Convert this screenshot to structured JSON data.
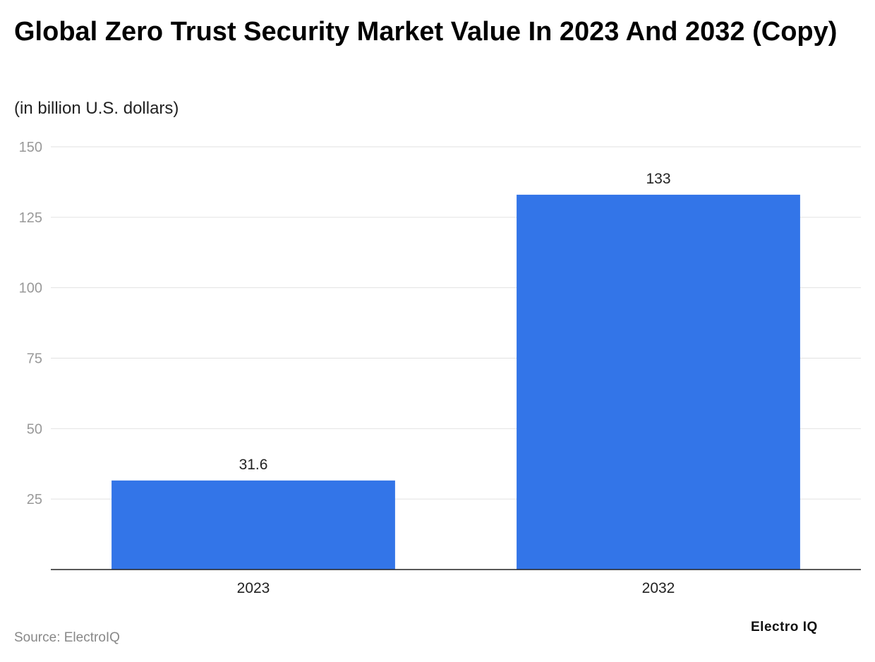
{
  "chart_data": {
    "type": "bar",
    "title": "Global Zero Trust Security Market Value In 2023 And 2032 (Copy)",
    "subtitle": "(in billion U.S. dollars)",
    "categories": [
      "2023",
      "2032"
    ],
    "values": [
      31.6,
      133
    ],
    "data_labels": [
      "31.6",
      "133"
    ],
    "ylim": [
      0,
      150
    ],
    "yticks": [
      25,
      50,
      75,
      100,
      125,
      150
    ],
    "grid": true,
    "bar_color": "#3375E8"
  },
  "footer": {
    "source": "Source: ElectroIQ",
    "logo": "Electro IQ"
  }
}
